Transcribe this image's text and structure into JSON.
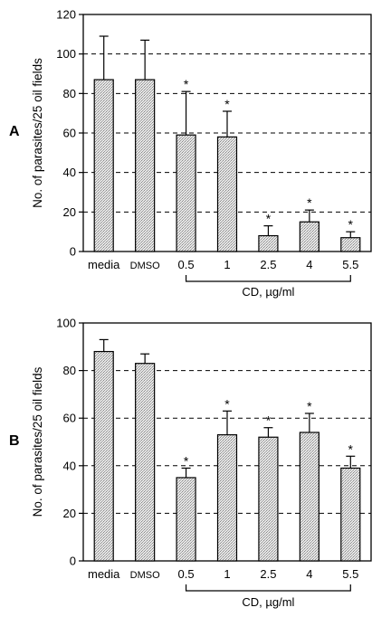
{
  "chart_data": [
    {
      "panel": "A",
      "type": "bar",
      "ylabel": "No. of parasites/25 oil fields",
      "xlabel": "CD, µg/ml",
      "categories": [
        "media",
        "DMSO",
        "0.5",
        "1",
        "2.5",
        "4",
        "5.5"
      ],
      "values": [
        87,
        87,
        59,
        58,
        8,
        15,
        7
      ],
      "errors": [
        22,
        20,
        22,
        13,
        5,
        6,
        3
      ],
      "significant": [
        false,
        false,
        true,
        true,
        true,
        true,
        true
      ],
      "significance_marker": "*",
      "ylim": [
        0,
        120
      ],
      "yticks": [
        0,
        20,
        40,
        60,
        80,
        100,
        120
      ],
      "grid": "dashed horizontal"
    },
    {
      "panel": "B",
      "type": "bar",
      "ylabel": "No. of parasites/25 oil fields",
      "xlabel": "CD, µg/ml",
      "categories": [
        "media",
        "DMSO",
        "0.5",
        "1",
        "2.5",
        "4",
        "5.5"
      ],
      "values": [
        88,
        83,
        35,
        53,
        52,
        54,
        39
      ],
      "errors": [
        5,
        4,
        4,
        10,
        4,
        8,
        5
      ],
      "significant": [
        false,
        false,
        true,
        true,
        true,
        true,
        true
      ],
      "significance_marker": "*",
      "ylim": [
        0,
        100
      ],
      "yticks": [
        0,
        20,
        40,
        60,
        80,
        100
      ],
      "grid": "dashed horizontal"
    }
  ]
}
